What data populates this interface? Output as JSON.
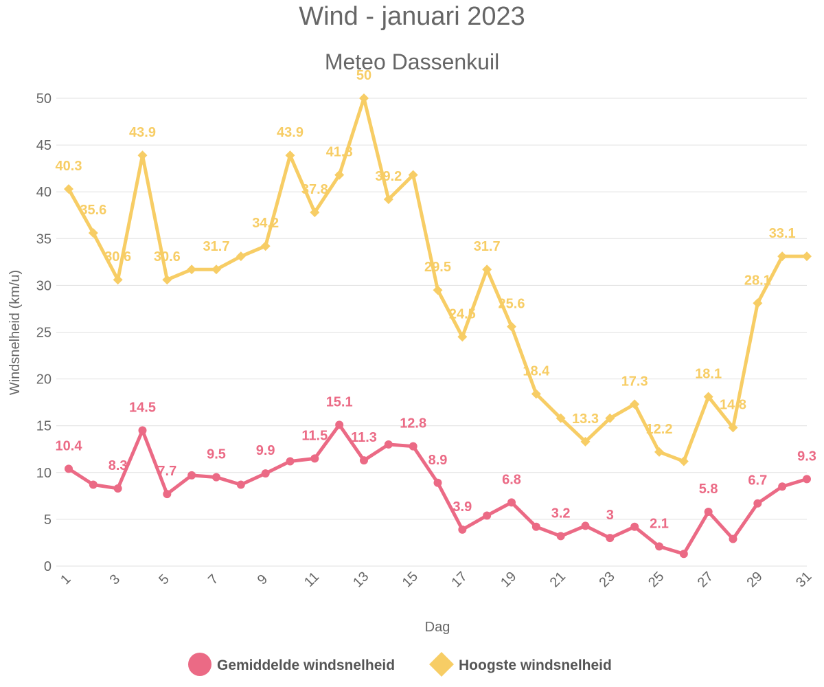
{
  "chart_data": {
    "type": "line",
    "title": "Wind - januari 2023",
    "subtitle": "Meteo Dassenkuil",
    "xlabel": "Dag",
    "ylabel": "Windsnelheid (km/u)",
    "x": [
      1,
      2,
      3,
      4,
      5,
      6,
      7,
      8,
      9,
      10,
      11,
      12,
      13,
      14,
      15,
      16,
      17,
      18,
      19,
      20,
      21,
      22,
      23,
      24,
      25,
      26,
      27,
      28,
      29,
      30,
      31
    ],
    "x_tick_labels": [
      "1",
      "3",
      "5",
      "7",
      "9",
      "11",
      "13",
      "15",
      "17",
      "19",
      "21",
      "23",
      "25",
      "27",
      "29",
      "31"
    ],
    "ylim": [
      0,
      50
    ],
    "y_ticks": [
      0,
      5,
      10,
      15,
      20,
      25,
      30,
      35,
      40,
      45,
      50
    ],
    "grid": true,
    "legend_position": "bottom-center",
    "series": [
      {
        "name": "Gemiddelde windsnelheid",
        "color": "#eb6a85",
        "marker": "circle",
        "values": [
          10.4,
          8.7,
          8.3,
          14.5,
          7.7,
          9.7,
          9.5,
          8.7,
          9.9,
          11.2,
          11.5,
          15.1,
          11.3,
          13.0,
          12.8,
          8.9,
          3.9,
          5.4,
          6.8,
          4.2,
          3.2,
          4.3,
          3,
          4.2,
          2.1,
          1.3,
          5.8,
          2.9,
          6.7,
          8.5,
          9.3
        ],
        "labels": [
          "10.4",
          "",
          "8.3",
          "14.5",
          "7.7",
          "",
          "9.5",
          "",
          "9.9",
          "",
          "11.5",
          "15.1",
          "11.3",
          "",
          "12.8",
          "8.9",
          "3.9",
          "",
          "6.8",
          "",
          "3.2",
          "",
          "3",
          "",
          "2.1",
          "",
          "5.8",
          "",
          "6.7",
          "",
          "9.3"
        ]
      },
      {
        "name": "Hoogste windsnelheid",
        "color": "#f7cd65",
        "marker": "diamond",
        "values": [
          40.3,
          35.6,
          30.6,
          43.9,
          30.6,
          31.7,
          31.7,
          33.1,
          34.2,
          43.9,
          37.8,
          41.8,
          50,
          39.2,
          41.8,
          29.5,
          24.5,
          31.7,
          25.6,
          18.4,
          15.8,
          13.3,
          15.8,
          17.3,
          12.2,
          11.2,
          18.1,
          14.8,
          28.1,
          33.1,
          33.1
        ],
        "labels": [
          "40.3",
          "35.6",
          "30.6",
          "43.9",
          "30.6",
          "",
          "31.7",
          "",
          "34.2",
          "43.9",
          "37.8",
          "41.8",
          "50",
          "39.2",
          "",
          "29.5",
          "24.5",
          "31.7",
          "25.6",
          "18.4",
          "",
          "13.3",
          "",
          "17.3",
          "12.2",
          "",
          "18.1",
          "14.8",
          "28.1",
          "33.1",
          ""
        ]
      }
    ]
  }
}
